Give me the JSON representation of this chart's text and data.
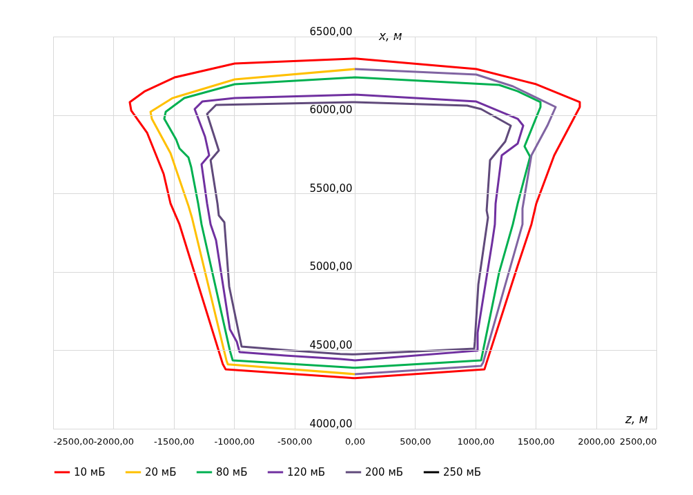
{
  "chart_data": {
    "type": "line",
    "xlabel": "z, м",
    "ylabel": "x, м",
    "xlim": [
      -2500,
      2500
    ],
    "ylim": [
      4000,
      6500
    ],
    "xticks": [
      {
        "value": -2500,
        "label": "-2500,00"
      },
      {
        "value": -2000,
        "label": "-2000,00"
      },
      {
        "value": -1500,
        "label": "-1500,00"
      },
      {
        "value": -1000,
        "label": "-1000,00"
      },
      {
        "value": -500,
        "label": "-500,00"
      },
      {
        "value": 0,
        "label": "0,00"
      },
      {
        "value": 500,
        "label": "500,00"
      },
      {
        "value": 1000,
        "label": "1000,00"
      },
      {
        "value": 1500,
        "label": "1500,00"
      },
      {
        "value": 2000,
        "label": "2000,00"
      },
      {
        "value": 2500,
        "label": "2500,00"
      }
    ],
    "yticks": [
      {
        "value": 4000,
        "label": "4000,00"
      },
      {
        "value": 4500,
        "label": "4500,00"
      },
      {
        "value": 5000,
        "label": "5000,00"
      },
      {
        "value": 5500,
        "label": "5500,00"
      },
      {
        "value": 6000,
        "label": "6000,00"
      },
      {
        "value": 6500,
        "label": "6500,00"
      }
    ],
    "grid": true,
    "legend": "bottom",
    "marker": "none",
    "line_style": "solid",
    "series": [
      {
        "name": "10 мБ",
        "color": "#ff0000",
        "x": [
          0,
          -995,
          -1493,
          -1739,
          -1865,
          -1853,
          -1722,
          -1584,
          -1527,
          -1453,
          -1093,
          -1070,
          0,
          null,
          0,
          1075,
          1093,
          1350,
          1464,
          1504,
          1653,
          1865,
          1865,
          1504,
          1007,
          0
        ],
        "values": [
          6360,
          6328,
          6240,
          6152,
          6082,
          6029,
          5888,
          5624,
          5435,
          5303,
          4410,
          4379,
          4322,
          null,
          4322,
          4379,
          4423,
          5039,
          5303,
          5435,
          5743,
          6051,
          6082,
          6196,
          6293,
          6360
        ]
      },
      {
        "name": "20 мБ",
        "color": "#ffc000",
        "x": [
          0,
          -995,
          -1510,
          -1693,
          -1682,
          -1527,
          -1379,
          -1350,
          -1064,
          -1052,
          0
        ],
        "values": [
          6293,
          6227,
          6108,
          6020,
          5976,
          5756,
          5422,
          5347,
          4436,
          4410,
          4348
        ]
      },
      {
        "name": "80 мБ",
        "color": "#00b050",
        "x": [
          0,
          -995,
          -1413,
          -1567,
          -1579,
          -1481,
          -1453,
          -1379,
          -1356,
          -1298,
          -1270,
          -1035,
          -1012,
          0,
          null,
          0,
          1047,
          1196,
          1310,
          1350,
          1453,
          1407,
          1539,
          1539,
          1350,
          1196,
          0
        ],
        "values": [
          6240,
          6196,
          6108,
          6020,
          5976,
          5844,
          5787,
          5730,
          5668,
          5435,
          5303,
          4498,
          4436,
          4388,
          null,
          4388,
          4436,
          4995,
          5303,
          5435,
          5734,
          5800,
          6051,
          6082,
          6152,
          6192,
          6240
        ]
      },
      {
        "name": "120 мБ",
        "color": "#7030a0",
        "x": [
          0,
          -995,
          -1264,
          -1327,
          -1241,
          -1207,
          -1270,
          -1224,
          -1195,
          -1150,
          -1035,
          -978,
          -955,
          -578,
          -120,
          0,
          null,
          0,
          1018,
          1018,
          1138,
          1161,
          1167,
          1218,
          1350,
          1396,
          1350,
          1007,
          0
        ],
        "values": [
          6130,
          6108,
          6086,
          6038,
          5862,
          5743,
          5686,
          5435,
          5303,
          5202,
          4634,
          4555,
          4489,
          4467,
          4445,
          4436,
          null,
          4436,
          4498,
          4612,
          5184,
          5303,
          5435,
          5743,
          5818,
          5932,
          5976,
          6086,
          6130
        ]
      },
      {
        "name": "200 мБ",
        "color": "#604a7b",
        "x": [
          0,
          -1150,
          -1224,
          -1138,
          -1127,
          -1195,
          -1138,
          -1127,
          -1081,
          -1041,
          -938,
          -578,
          -120,
          0,
          null,
          0,
          990,
          995,
          1024,
          1104,
          1093,
          1121,
          1247,
          1293,
          1047,
          932,
          0
        ],
        "values": [
          6082,
          6064,
          6007,
          5800,
          5774,
          5712,
          5435,
          5360,
          5316,
          4907,
          4524,
          4502,
          4476,
          4474,
          null,
          4474,
          4511,
          4555,
          4920,
          5347,
          5391,
          5712,
          5831,
          5932,
          6038,
          6060,
          6082
        ]
      },
      {
        "name": "250 мБ",
        "color": "#000000"
      },
      {
        "color": "#8064a2",
        "x": [
          0,
          1047,
          1064,
          1276,
          1390,
          1390,
          1464,
          1596,
          1665,
          1310,
          1007,
          0
        ],
        "values": [
          4348,
          4401,
          4423,
          4995,
          5303,
          5404,
          5743,
          5932,
          6051,
          6183,
          6258,
          6293
        ]
      }
    ]
  }
}
